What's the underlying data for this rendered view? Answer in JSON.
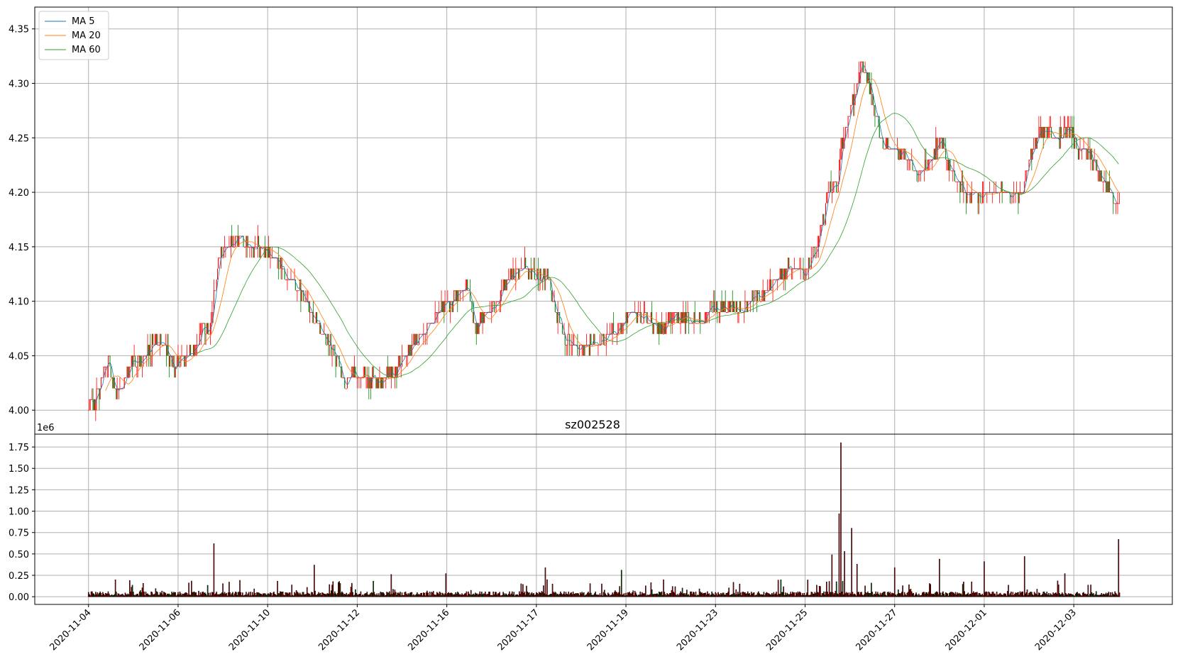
{
  "chart_data": {
    "type": "candlestick",
    "title": "sz002528",
    "volume_exponent_label": "1e6",
    "colors": {
      "up": "#ff0000",
      "down": "#008000",
      "ma5": "#1f77b4",
      "ma20": "#ff7f0e",
      "ma60": "#2ca02c",
      "grid": "#b0b0b0",
      "volume_edge": "#000000"
    },
    "legend": {
      "placement": "top-left",
      "entries": [
        {
          "key": "ma5",
          "label": "MA 5"
        },
        {
          "key": "ma20",
          "label": "MA 20"
        },
        {
          "key": "ma60",
          "label": "MA 60"
        }
      ]
    },
    "price_axis": {
      "ylim": [
        3.978,
        4.37
      ],
      "ticks": [
        4.0,
        4.05,
        4.1,
        4.15,
        4.2,
        4.25,
        4.3,
        4.35
      ],
      "tick_labels": [
        "4.00",
        "4.05",
        "4.10",
        "4.15",
        "4.20",
        "4.25",
        "4.30",
        "4.35"
      ]
    },
    "volume_axis": {
      "ylim": [
        -0.09,
        1.9
      ],
      "ticks": [
        0.0,
        0.25,
        0.5,
        0.75,
        1.0,
        1.25,
        1.5,
        1.75
      ],
      "tick_labels": [
        "0.00",
        "0.25",
        "0.50",
        "0.75",
        "1.00",
        "1.25",
        "1.50",
        "1.75"
      ]
    },
    "x_axis": {
      "xlim": [
        -60,
        1210
      ],
      "tick_positions": [
        0,
        100,
        200,
        300,
        400,
        500,
        600,
        700,
        800,
        900,
        1000,
        1100
      ],
      "tick_labels": [
        "2020-11-04",
        "2020-11-06",
        "2020-11-10",
        "2020-11-12",
        "2020-11-16",
        "2020-11-17",
        "2020-11-19",
        "2020-11-23",
        "2020-11-25",
        "2020-11-27",
        "2020-12-01",
        "2020-12-03"
      ],
      "bar_count": 1152
    },
    "close_anchors": [
      [
        0,
        4.0
      ],
      [
        8,
        4.01
      ],
      [
        16,
        4.03
      ],
      [
        22,
        4.045
      ],
      [
        30,
        4.02
      ],
      [
        38,
        4.02
      ],
      [
        48,
        4.045
      ],
      [
        56,
        4.045
      ],
      [
        66,
        4.055
      ],
      [
        76,
        4.065
      ],
      [
        86,
        4.055
      ],
      [
        96,
        4.04
      ],
      [
        106,
        4.05
      ],
      [
        118,
        4.055
      ],
      [
        126,
        4.07
      ],
      [
        136,
        4.08
      ],
      [
        146,
        4.14
      ],
      [
        156,
        4.15
      ],
      [
        166,
        4.16
      ],
      [
        180,
        4.15
      ],
      [
        190,
        4.15
      ],
      [
        200,
        4.145
      ],
      [
        208,
        4.14
      ],
      [
        216,
        4.13
      ],
      [
        226,
        4.12
      ],
      [
        236,
        4.11
      ],
      [
        246,
        4.095
      ],
      [
        256,
        4.08
      ],
      [
        266,
        4.065
      ],
      [
        276,
        4.05
      ],
      [
        286,
        4.025
      ],
      [
        296,
        4.035
      ],
      [
        306,
        4.03
      ],
      [
        316,
        4.03
      ],
      [
        324,
        4.025
      ],
      [
        334,
        4.03
      ],
      [
        344,
        4.035
      ],
      [
        352,
        4.05
      ],
      [
        362,
        4.06
      ],
      [
        372,
        4.075
      ],
      [
        382,
        4.08
      ],
      [
        392,
        4.09
      ],
      [
        402,
        4.095
      ],
      [
        412,
        4.105
      ],
      [
        422,
        4.115
      ],
      [
        432,
        4.075
      ],
      [
        442,
        4.085
      ],
      [
        452,
        4.095
      ],
      [
        462,
        4.11
      ],
      [
        472,
        4.125
      ],
      [
        482,
        4.13
      ],
      [
        492,
        4.13
      ],
      [
        502,
        4.12
      ],
      [
        512,
        4.125
      ],
      [
        520,
        4.095
      ],
      [
        530,
        4.07
      ],
      [
        540,
        4.06
      ],
      [
        550,
        4.055
      ],
      [
        560,
        4.06
      ],
      [
        570,
        4.06
      ],
      [
        580,
        4.07
      ],
      [
        590,
        4.075
      ],
      [
        600,
        4.085
      ],
      [
        610,
        4.09
      ],
      [
        620,
        4.085
      ],
      [
        630,
        4.08
      ],
      [
        640,
        4.075
      ],
      [
        650,
        4.085
      ],
      [
        660,
        4.085
      ],
      [
        670,
        4.085
      ],
      [
        680,
        4.08
      ],
      [
        690,
        4.09
      ],
      [
        700,
        4.095
      ],
      [
        710,
        4.095
      ],
      [
        720,
        4.09
      ],
      [
        730,
        4.095
      ],
      [
        740,
        4.1
      ],
      [
        750,
        4.105
      ],
      [
        760,
        4.115
      ],
      [
        770,
        4.12
      ],
      [
        780,
        4.13
      ],
      [
        790,
        4.13
      ],
      [
        800,
        4.125
      ],
      [
        808,
        4.14
      ],
      [
        814,
        4.15
      ],
      [
        818,
        4.17
      ],
      [
        822,
        4.18
      ],
      [
        826,
        4.2
      ],
      [
        832,
        4.21
      ],
      [
        836,
        4.2
      ],
      [
        840,
        4.24
      ],
      [
        846,
        4.26
      ],
      [
        852,
        4.28
      ],
      [
        858,
        4.3
      ],
      [
        862,
        4.315
      ],
      [
        866,
        4.32
      ],
      [
        872,
        4.295
      ],
      [
        878,
        4.27
      ],
      [
        884,
        4.25
      ],
      [
        890,
        4.245
      ],
      [
        898,
        4.24
      ],
      [
        906,
        4.235
      ],
      [
        912,
        4.23
      ],
      [
        918,
        4.23
      ],
      [
        926,
        4.215
      ],
      [
        934,
        4.225
      ],
      [
        942,
        4.235
      ],
      [
        950,
        4.245
      ],
      [
        956,
        4.24
      ],
      [
        962,
        4.225
      ],
      [
        970,
        4.205
      ],
      [
        978,
        4.2
      ],
      [
        986,
        4.2
      ],
      [
        994,
        4.195
      ],
      [
        1002,
        4.2
      ],
      [
        1010,
        4.2
      ],
      [
        1018,
        4.205
      ],
      [
        1026,
        4.2
      ],
      [
        1034,
        4.195
      ],
      [
        1042,
        4.2
      ],
      [
        1050,
        4.225
      ],
      [
        1056,
        4.245
      ],
      [
        1062,
        4.255
      ],
      [
        1068,
        4.26
      ],
      [
        1076,
        4.25
      ],
      [
        1084,
        4.25
      ],
      [
        1092,
        4.26
      ],
      [
        1098,
        4.255
      ],
      [
        1104,
        4.235
      ],
      [
        1110,
        4.24
      ],
      [
        1116,
        4.235
      ],
      [
        1124,
        4.225
      ],
      [
        1130,
        4.215
      ],
      [
        1136,
        4.21
      ],
      [
        1142,
        4.195
      ],
      [
        1148,
        4.19
      ],
      [
        1152,
        4.19
      ]
    ],
    "volume_spikes": [
      [
        140,
        0.62
      ],
      [
        252,
        0.37
      ],
      [
        338,
        0.26
      ],
      [
        399,
        0.27
      ],
      [
        510,
        0.34
      ],
      [
        595,
        0.31
      ],
      [
        830,
        0.49
      ],
      [
        838,
        0.97
      ],
      [
        840,
        1.8
      ],
      [
        844,
        0.53
      ],
      [
        852,
        0.8
      ],
      [
        858,
        0.38
      ],
      [
        900,
        0.34
      ],
      [
        950,
        0.44
      ],
      [
        1000,
        0.41
      ],
      [
        1045,
        0.47
      ],
      [
        1090,
        0.27
      ],
      [
        1150,
        0.67
      ]
    ]
  }
}
